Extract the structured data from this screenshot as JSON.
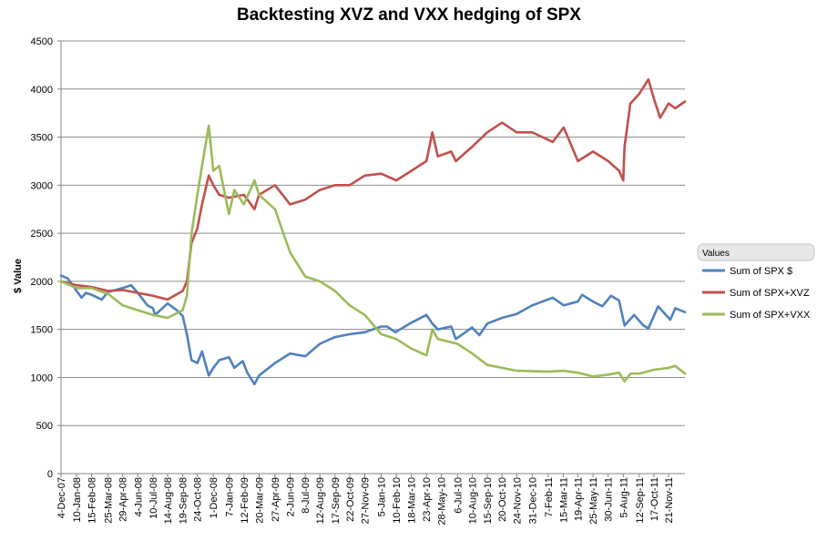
{
  "chart_data": {
    "type": "line",
    "title": "Backtesting XVZ and VXX hedging of SPX",
    "xlabel": "",
    "ylabel": "$ Value",
    "ylim": [
      0,
      4500
    ],
    "yticks": [
      0,
      500,
      1000,
      1500,
      2000,
      2500,
      3000,
      3500,
      4000,
      4500
    ],
    "grid": "horizontal",
    "legend_title": "Values",
    "legend_position": "right",
    "x_start": "2007-12-04",
    "x_end": "2011-12-30",
    "xtick_labels": [
      "4-Dec-07",
      "10-Jan-08",
      "15-Feb-08",
      "25-Mar-08",
      "29-Apr-08",
      "4-Jun-08",
      "10-Jul-08",
      "14-Aug-08",
      "19-Sep-08",
      "24-Oct-08",
      "1-Dec-08",
      "7-Jan-09",
      "12-Feb-09",
      "20-Mar-09",
      "27-Apr-09",
      "2-Jun-09",
      "8-Jul-09",
      "12-Aug-09",
      "17-Sep-09",
      "22-Oct-09",
      "27-Nov-09",
      "5-Jan-10",
      "10-Feb-10",
      "18-Mar-10",
      "23-Apr-10",
      "28-May-10",
      "6-Jul-10",
      "10-Aug-10",
      "15-Sep-10",
      "20-Oct-10",
      "24-Nov-10",
      "31-Dec-10",
      "7-Feb-11",
      "15-Mar-11",
      "19-Apr-11",
      "25-May-11",
      "30-Jun-11",
      "5-Aug-11",
      "12-Sep-11",
      "17-Oct-11",
      "21-Nov-11"
    ],
    "xtick_dates": [
      "2007-12-04",
      "2008-01-10",
      "2008-02-15",
      "2008-03-25",
      "2008-04-29",
      "2008-06-04",
      "2008-07-10",
      "2008-08-14",
      "2008-09-19",
      "2008-10-24",
      "2008-12-01",
      "2009-01-07",
      "2009-02-12",
      "2009-03-20",
      "2009-04-27",
      "2009-06-02",
      "2009-07-08",
      "2009-08-12",
      "2009-09-17",
      "2009-10-22",
      "2009-11-27",
      "2010-01-05",
      "2010-02-10",
      "2010-03-18",
      "2010-04-23",
      "2010-05-28",
      "2010-07-06",
      "2010-08-10",
      "2010-09-15",
      "2010-10-20",
      "2010-11-24",
      "2010-12-31",
      "2011-02-07",
      "2011-03-15",
      "2011-04-19",
      "2011-05-25",
      "2011-06-30",
      "2011-08-05",
      "2011-09-12",
      "2011-10-17",
      "2011-11-21"
    ],
    "series": [
      {
        "name": "Sum of  SPX $",
        "color": "#4f81bd",
        "points": [
          [
            "2007-12-04",
            2060
          ],
          [
            "2007-12-20",
            2030
          ],
          [
            "2008-01-10",
            1900
          ],
          [
            "2008-01-22",
            1830
          ],
          [
            "2008-02-01",
            1880
          ],
          [
            "2008-02-15",
            1860
          ],
          [
            "2008-03-10",
            1810
          ],
          [
            "2008-03-25",
            1890
          ],
          [
            "2008-04-29",
            1930
          ],
          [
            "2008-05-19",
            1960
          ],
          [
            "2008-06-04",
            1880
          ],
          [
            "2008-06-27",
            1750
          ],
          [
            "2008-07-10",
            1720
          ],
          [
            "2008-07-15",
            1650
          ],
          [
            "2008-08-14",
            1770
          ],
          [
            "2008-09-05",
            1700
          ],
          [
            "2008-09-19",
            1640
          ],
          [
            "2008-09-29",
            1450
          ],
          [
            "2008-10-10",
            1180
          ],
          [
            "2008-10-24",
            1150
          ],
          [
            "2008-11-04",
            1270
          ],
          [
            "2008-11-20",
            1020
          ],
          [
            "2008-12-01",
            1100
          ],
          [
            "2008-12-15",
            1180
          ],
          [
            "2009-01-07",
            1210
          ],
          [
            "2009-01-20",
            1100
          ],
          [
            "2009-02-09",
            1170
          ],
          [
            "2009-02-20",
            1050
          ],
          [
            "2009-03-09",
            930
          ],
          [
            "2009-03-20",
            1020
          ],
          [
            "2009-04-27",
            1150
          ],
          [
            "2009-06-02",
            1250
          ],
          [
            "2009-07-08",
            1220
          ],
          [
            "2009-08-12",
            1350
          ],
          [
            "2009-09-17",
            1420
          ],
          [
            "2009-10-22",
            1450
          ],
          [
            "2009-11-27",
            1470
          ],
          [
            "2010-01-05",
            1530
          ],
          [
            "2010-01-19",
            1530
          ],
          [
            "2010-02-08",
            1470
          ],
          [
            "2010-03-18",
            1570
          ],
          [
            "2010-04-23",
            1650
          ],
          [
            "2010-05-07",
            1560
          ],
          [
            "2010-05-20",
            1500
          ],
          [
            "2010-06-21",
            1530
          ],
          [
            "2010-07-02",
            1400
          ],
          [
            "2010-08-10",
            1520
          ],
          [
            "2010-08-27",
            1440
          ],
          [
            "2010-09-15",
            1560
          ],
          [
            "2010-10-20",
            1620
          ],
          [
            "2010-11-24",
            1660
          ],
          [
            "2010-12-31",
            1750
          ],
          [
            "2011-02-18",
            1830
          ],
          [
            "2011-03-16",
            1750
          ],
          [
            "2011-04-19",
            1790
          ],
          [
            "2011-04-29",
            1860
          ],
          [
            "2011-05-25",
            1790
          ],
          [
            "2011-06-16",
            1740
          ],
          [
            "2011-07-07",
            1850
          ],
          [
            "2011-07-26",
            1800
          ],
          [
            "2011-08-08",
            1540
          ],
          [
            "2011-08-31",
            1650
          ],
          [
            "2011-09-22",
            1540
          ],
          [
            "2011-10-04",
            1510
          ],
          [
            "2011-10-27",
            1740
          ],
          [
            "2011-11-25",
            1600
          ],
          [
            "2011-12-07",
            1720
          ],
          [
            "2011-12-30",
            1680
          ]
        ]
      },
      {
        "name": "Sum of SPX+XVZ",
        "color": "#c0504d",
        "points": [
          [
            "2007-12-04",
            2000
          ],
          [
            "2008-01-10",
            1960
          ],
          [
            "2008-02-15",
            1940
          ],
          [
            "2008-03-25",
            1900
          ],
          [
            "2008-04-29",
            1910
          ],
          [
            "2008-06-04",
            1880
          ],
          [
            "2008-07-10",
            1850
          ],
          [
            "2008-08-14",
            1810
          ],
          [
            "2008-09-19",
            1900
          ],
          [
            "2008-09-29",
            2000
          ],
          [
            "2008-10-10",
            2400
          ],
          [
            "2008-10-24",
            2550
          ],
          [
            "2008-11-04",
            2800
          ],
          [
            "2008-11-20",
            3100
          ],
          [
            "2008-12-01",
            3000
          ],
          [
            "2008-12-15",
            2900
          ],
          [
            "2009-01-07",
            2870
          ],
          [
            "2009-02-12",
            2900
          ],
          [
            "2009-03-09",
            2750
          ],
          [
            "2009-03-20",
            2900
          ],
          [
            "2009-04-27",
            3000
          ],
          [
            "2009-06-02",
            2800
          ],
          [
            "2009-07-08",
            2850
          ],
          [
            "2009-08-12",
            2950
          ],
          [
            "2009-09-17",
            3000
          ],
          [
            "2009-10-22",
            3000
          ],
          [
            "2009-11-27",
            3100
          ],
          [
            "2010-01-05",
            3120
          ],
          [
            "2010-02-10",
            3050
          ],
          [
            "2010-03-18",
            3150
          ],
          [
            "2010-04-23",
            3250
          ],
          [
            "2010-05-07",
            3550
          ],
          [
            "2010-05-20",
            3300
          ],
          [
            "2010-06-21",
            3350
          ],
          [
            "2010-07-02",
            3250
          ],
          [
            "2010-08-10",
            3400
          ],
          [
            "2010-09-15",
            3550
          ],
          [
            "2010-10-20",
            3650
          ],
          [
            "2010-11-24",
            3550
          ],
          [
            "2010-12-31",
            3550
          ],
          [
            "2011-02-18",
            3450
          ],
          [
            "2011-03-16",
            3600
          ],
          [
            "2011-04-19",
            3250
          ],
          [
            "2011-05-25",
            3350
          ],
          [
            "2011-06-30",
            3250
          ],
          [
            "2011-07-26",
            3150
          ],
          [
            "2011-08-05",
            3050
          ],
          [
            "2011-08-08",
            3400
          ],
          [
            "2011-08-22",
            3850
          ],
          [
            "2011-09-12",
            3950
          ],
          [
            "2011-10-04",
            4100
          ],
          [
            "2011-10-17",
            3900
          ],
          [
            "2011-11-01",
            3700
          ],
          [
            "2011-11-21",
            3850
          ],
          [
            "2011-12-07",
            3800
          ],
          [
            "2011-12-30",
            3870
          ]
        ]
      },
      {
        "name": "Sum of SPX+VXX",
        "color": "#9bbb59",
        "points": [
          [
            "2007-12-04",
            2000
          ],
          [
            "2008-01-10",
            1930
          ],
          [
            "2008-02-15",
            1930
          ],
          [
            "2008-03-25",
            1870
          ],
          [
            "2008-04-29",
            1750
          ],
          [
            "2008-06-04",
            1700
          ],
          [
            "2008-07-10",
            1650
          ],
          [
            "2008-08-14",
            1620
          ],
          [
            "2008-09-19",
            1700
          ],
          [
            "2008-09-29",
            1850
          ],
          [
            "2008-10-10",
            2500
          ],
          [
            "2008-10-24",
            2900
          ],
          [
            "2008-11-04",
            3200
          ],
          [
            "2008-11-20",
            3620
          ],
          [
            "2008-12-01",
            3150
          ],
          [
            "2008-12-15",
            3200
          ],
          [
            "2009-01-07",
            2700
          ],
          [
            "2009-01-20",
            2950
          ],
          [
            "2009-02-12",
            2800
          ],
          [
            "2009-03-09",
            3050
          ],
          [
            "2009-03-20",
            2900
          ],
          [
            "2009-04-27",
            2750
          ],
          [
            "2009-06-02",
            2300
          ],
          [
            "2009-07-08",
            2050
          ],
          [
            "2009-08-12",
            2000
          ],
          [
            "2009-09-17",
            1900
          ],
          [
            "2009-10-22",
            1750
          ],
          [
            "2009-11-27",
            1650
          ],
          [
            "2010-01-05",
            1450
          ],
          [
            "2010-02-10",
            1400
          ],
          [
            "2010-03-18",
            1300
          ],
          [
            "2010-04-23",
            1230
          ],
          [
            "2010-05-07",
            1500
          ],
          [
            "2010-05-20",
            1400
          ],
          [
            "2010-07-06",
            1350
          ],
          [
            "2010-08-10",
            1250
          ],
          [
            "2010-09-15",
            1130
          ],
          [
            "2010-10-20",
            1100
          ],
          [
            "2010-11-24",
            1070
          ],
          [
            "2011-02-07",
            1060
          ],
          [
            "2011-03-15",
            1070
          ],
          [
            "2011-04-19",
            1050
          ],
          [
            "2011-05-25",
            1010
          ],
          [
            "2011-06-30",
            1030
          ],
          [
            "2011-07-26",
            1050
          ],
          [
            "2011-08-05",
            980
          ],
          [
            "2011-08-08",
            960
          ],
          [
            "2011-08-22",
            1040
          ],
          [
            "2011-09-12",
            1040
          ],
          [
            "2011-10-17",
            1080
          ],
          [
            "2011-11-21",
            1100
          ],
          [
            "2011-12-07",
            1120
          ],
          [
            "2011-12-30",
            1040
          ]
        ]
      }
    ]
  }
}
